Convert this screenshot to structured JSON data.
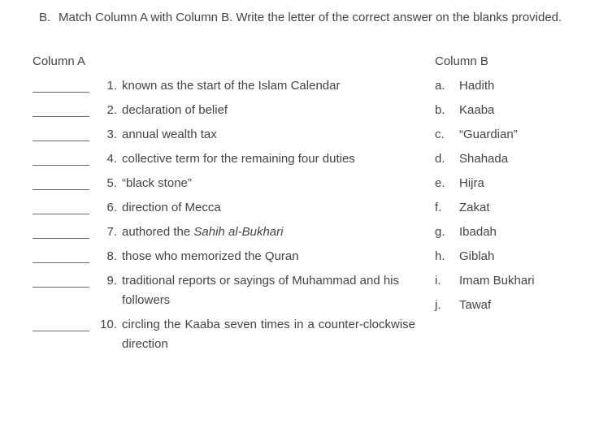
{
  "section_label": "B.",
  "instructions": "Match Column A with Column B. Write the letter of the correct answer on the blanks provided.",
  "columnA": {
    "title": "Column A",
    "items": [
      {
        "num": "1.",
        "text": "known as the start of the Islam Calendar"
      },
      {
        "num": "2.",
        "text": "declaration of belief"
      },
      {
        "num": "3.",
        "text": "annual wealth tax"
      },
      {
        "num": "4.",
        "text": "collective term for the remaining four duties"
      },
      {
        "num": "5.",
        "text": "“black stone”"
      },
      {
        "num": "6.",
        "text": "direction of Mecca"
      },
      {
        "num": "7.",
        "text_pre": "authored the ",
        "text_italic": "Sahih al-Bukhari"
      },
      {
        "num": "8.",
        "text": "those who memorized the Quran"
      },
      {
        "num": "9.",
        "text": "traditional reports or sayings of Muhammad and his followers"
      },
      {
        "num": "10.",
        "text": "circling the Kaaba seven times in a counter-clockwise direction",
        "justify": true
      }
    ]
  },
  "columnB": {
    "title": "Column B",
    "items": [
      {
        "letter": "a.",
        "text": "Hadith"
      },
      {
        "letter": "b.",
        "text": "Kaaba"
      },
      {
        "letter": "c.",
        "text": "“Guardian”"
      },
      {
        "letter": "d.",
        "text": "Shahada"
      },
      {
        "letter": "e.",
        "text": "Hijra"
      },
      {
        "letter": "f.",
        "text": "Zakat"
      },
      {
        "letter": "g.",
        "text": "Ibadah"
      },
      {
        "letter": "h.",
        "text": "Giblah"
      },
      {
        "letter": "i.",
        "text": "Imam Bukhari"
      },
      {
        "letter": "j.",
        "text": "Tawaf"
      }
    ]
  }
}
